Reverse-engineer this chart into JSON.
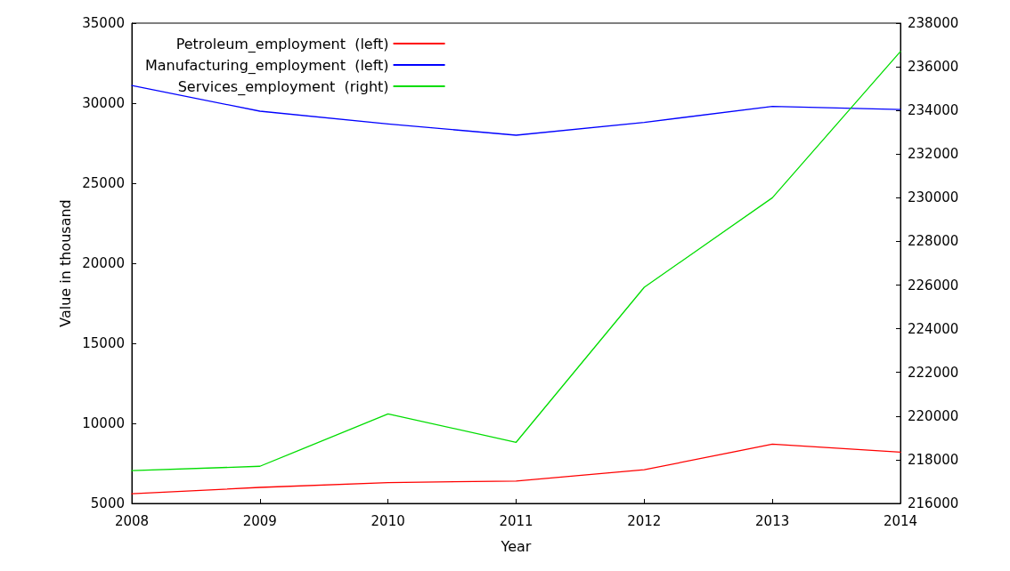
{
  "chart_data": {
    "type": "line",
    "xlabel": "Year",
    "ylabel": "Value in thousand",
    "x": [
      2008,
      2009,
      2010,
      2011,
      2012,
      2013,
      2014
    ],
    "xlim": [
      2008,
      2014
    ],
    "xticks": [
      2008,
      2009,
      2010,
      2011,
      2012,
      2013,
      2014
    ],
    "ylim": [
      5000,
      35000
    ],
    "yticks": [
      5000,
      10000,
      15000,
      20000,
      25000,
      30000,
      35000
    ],
    "y2lim": [
      216000,
      238000
    ],
    "y2ticks": [
      216000,
      218000,
      220000,
      222000,
      224000,
      226000,
      228000,
      230000,
      232000,
      234000,
      236000,
      238000
    ],
    "series": [
      {
        "name": "Petroleum_employment  (left)",
        "color": "#ff0000",
        "values": [
          5600,
          6000,
          6300,
          6400,
          7100,
          8700,
          8200
        ]
      },
      {
        "name": "Manufacturing_employment  (left)",
        "color": "#0000ff",
        "values": [
          31100,
          29500,
          28700,
          28000,
          28800,
          29800,
          29600
        ]
      },
      {
        "name": "Services_employment  (right)",
        "color": "#00dd00",
        "axis": "y2",
        "values": [
          217500,
          217700,
          220100,
          218800,
          225900,
          230000,
          236700
        ]
      }
    ],
    "grid": false,
    "legend": "top left",
    "marker": "none",
    "line_style": "solid"
  }
}
